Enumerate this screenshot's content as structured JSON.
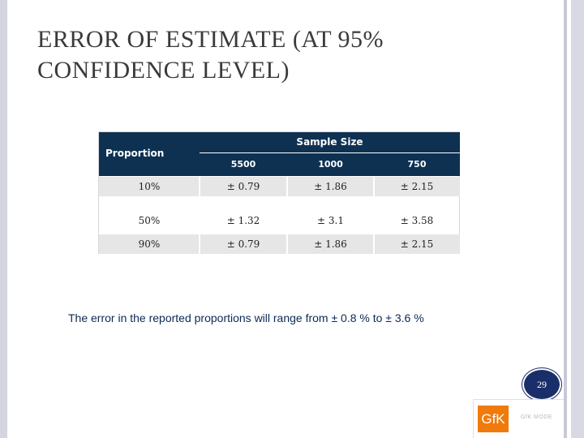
{
  "slide": {
    "title_line1": "ERROR OF ESTIMATE (AT 95%",
    "title_line2": "CONFIDENCE LEVEL)",
    "page_number": "29"
  },
  "table": {
    "header_proportion": "Proportion",
    "header_sample_size": "Sample Size",
    "sample_sizes": [
      "5500",
      "1000",
      "750"
    ],
    "rows": [
      {
        "proportion": "10%",
        "values": [
          "± 0.79",
          "± 1.86",
          "± 2.15"
        ]
      },
      {
        "proportion": "50%",
        "values": [
          "± 1.32",
          "± 3.1",
          "± 3.58"
        ]
      },
      {
        "proportion": "90%",
        "values": [
          "± 0.79",
          "± 1.86",
          "± 2.15"
        ]
      }
    ]
  },
  "note": "The error in the reported proportions will range from ± 0.8 % to ±  3.6 %",
  "logo": {
    "mark": "GfK",
    "caption": "GfK MODE"
  },
  "colors": {
    "header_bg": "#0e3152",
    "row_shade": "#e6e6e6",
    "note_text": "#0a2a55",
    "logo_orange": "#f07a0a",
    "badge_bg": "#1a2f6a"
  }
}
